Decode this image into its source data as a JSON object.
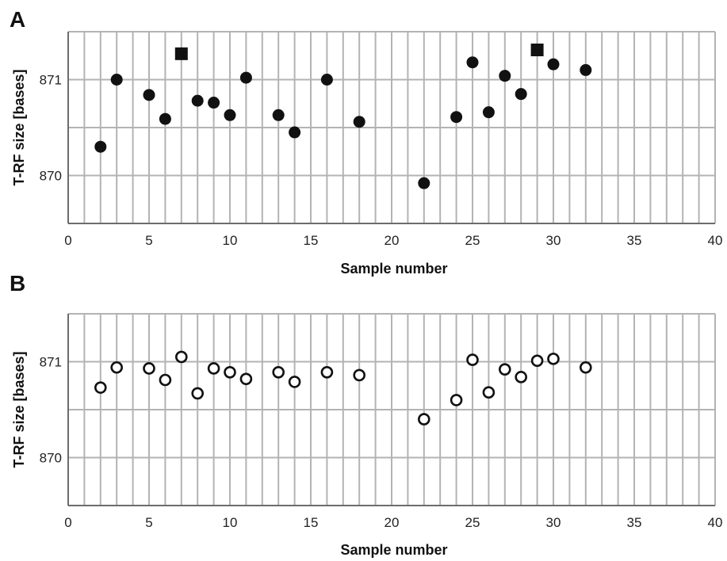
{
  "chart_data": [
    {
      "type": "scatter",
      "panel_label": "A",
      "xlabel": "Sample number",
      "ylabel": "T-RF size [bases]",
      "xlim": [
        0,
        40
      ],
      "ylim": [
        869.5,
        871.5
      ],
      "x_ticks": [
        "0",
        "5",
        "10",
        "15",
        "20",
        "25",
        "30",
        "35",
        "40"
      ],
      "y_ticks": [
        "870",
        "871"
      ],
      "grid": true,
      "series": [
        {
          "marker": "filled-circle",
          "color": "#111111",
          "points": [
            {
              "x": 2,
              "y": 870.3
            },
            {
              "x": 3,
              "y": 871.0
            },
            {
              "x": 5,
              "y": 870.84
            },
            {
              "x": 6,
              "y": 870.59
            },
            {
              "x": 8,
              "y": 870.78
            },
            {
              "x": 9,
              "y": 870.76
            },
            {
              "x": 10,
              "y": 870.63
            },
            {
              "x": 11,
              "y": 871.02
            },
            {
              "x": 13,
              "y": 870.63
            },
            {
              "x": 14,
              "y": 870.45
            },
            {
              "x": 16,
              "y": 871.0
            },
            {
              "x": 18,
              "y": 870.56
            },
            {
              "x": 22,
              "y": 869.92
            },
            {
              "x": 24,
              "y": 870.61
            },
            {
              "x": 25,
              "y": 871.18
            },
            {
              "x": 26,
              "y": 870.66
            },
            {
              "x": 27,
              "y": 871.04
            },
            {
              "x": 28,
              "y": 870.85
            },
            {
              "x": 30,
              "y": 871.16
            },
            {
              "x": 32,
              "y": 871.1
            }
          ]
        },
        {
          "marker": "filled-square",
          "color": "#111111",
          "points": [
            {
              "x": 7,
              "y": 871.27
            },
            {
              "x": 29,
              "y": 871.31
            }
          ]
        }
      ]
    },
    {
      "type": "scatter",
      "panel_label": "B",
      "xlabel": "Sample number",
      "ylabel": "T-RF size [bases]",
      "xlim": [
        0,
        40
      ],
      "ylim": [
        869.5,
        871.5
      ],
      "x_ticks": [
        "0",
        "5",
        "10",
        "15",
        "20",
        "25",
        "30",
        "35",
        "40"
      ],
      "y_ticks": [
        "870",
        "871"
      ],
      "grid": true,
      "series": [
        {
          "marker": "open-circle",
          "color": "#111111",
          "points": [
            {
              "x": 2,
              "y": 870.73
            },
            {
              "x": 3,
              "y": 870.94
            },
            {
              "x": 5,
              "y": 870.93
            },
            {
              "x": 6,
              "y": 870.81
            },
            {
              "x": 7,
              "y": 871.05
            },
            {
              "x": 8,
              "y": 870.67
            },
            {
              "x": 9,
              "y": 870.93
            },
            {
              "x": 10,
              "y": 870.89
            },
            {
              "x": 11,
              "y": 870.82
            },
            {
              "x": 13,
              "y": 870.89
            },
            {
              "x": 14,
              "y": 870.79
            },
            {
              "x": 16,
              "y": 870.89
            },
            {
              "x": 18,
              "y": 870.86
            },
            {
              "x": 22,
              "y": 870.4
            },
            {
              "x": 24,
              "y": 870.6
            },
            {
              "x": 25,
              "y": 871.02
            },
            {
              "x": 26,
              "y": 870.68
            },
            {
              "x": 27,
              "y": 870.92
            },
            {
              "x": 28,
              "y": 870.84
            },
            {
              "x": 29,
              "y": 871.01
            },
            {
              "x": 30,
              "y": 871.03
            },
            {
              "x": 32,
              "y": 870.94
            }
          ]
        }
      ]
    }
  ]
}
